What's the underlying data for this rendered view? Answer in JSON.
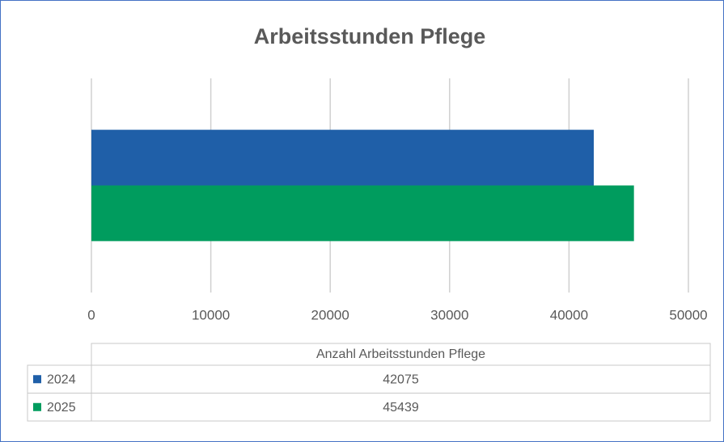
{
  "chart_data": {
    "type": "bar",
    "orientation": "horizontal",
    "title": "Arbeitsstunden Pflege",
    "categories": [
      "Anzahl Arbeitsstunden Pflege"
    ],
    "series": [
      {
        "name": "2024",
        "color": "#1f5fa8",
        "values": [
          42075
        ]
      },
      {
        "name": "2025",
        "color": "#009c5e",
        "values": [
          45439
        ]
      }
    ],
    "xlim": [
      0,
      50000
    ],
    "xticks": [
      0,
      10000,
      20000,
      30000,
      40000,
      50000
    ],
    "grid": true
  }
}
